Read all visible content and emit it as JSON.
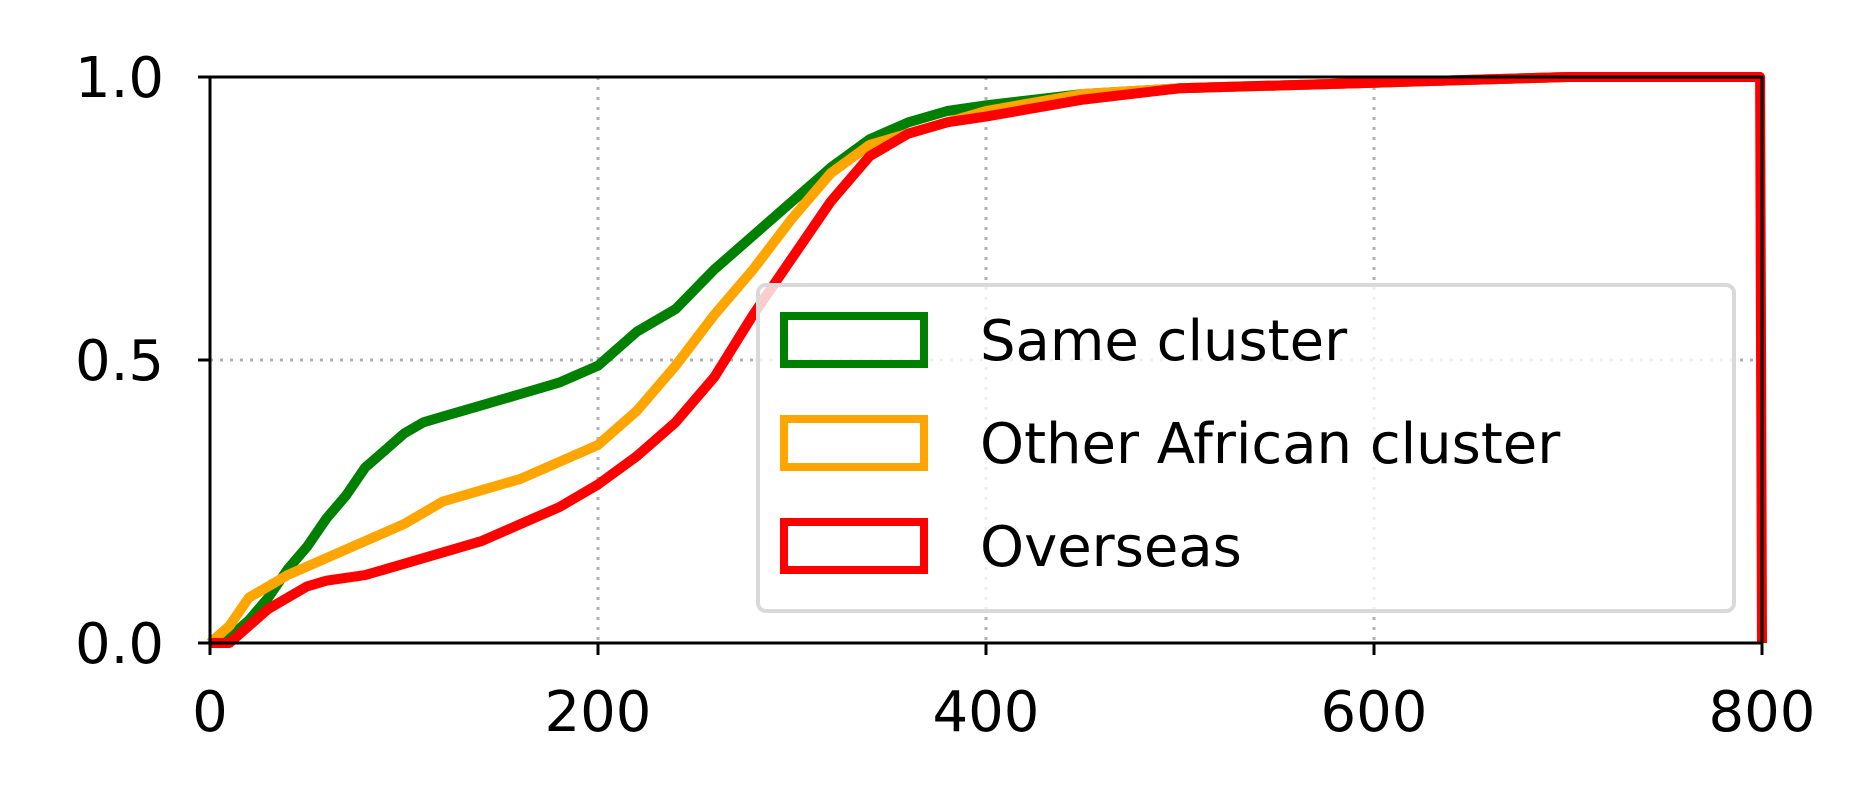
{
  "chart_data": {
    "type": "line",
    "title": "",
    "xlabel": "",
    "ylabel": "",
    "xlim": [
      0,
      800
    ],
    "ylim": [
      0.0,
      1.0
    ],
    "x_ticks": [
      0,
      200,
      400,
      600,
      800
    ],
    "x_tick_labels": [
      "0",
      "200",
      "400",
      "600",
      "800"
    ],
    "y_ticks": [
      0.0,
      0.5,
      1.0
    ],
    "y_tick_labels": [
      "0.0",
      "0.5",
      "1.0"
    ],
    "grid": true,
    "legend_position": "center-right",
    "series": [
      {
        "name": "Same cluster",
        "color": "#008000",
        "x": [
          0,
          10,
          20,
          30,
          40,
          50,
          60,
          70,
          80,
          90,
          100,
          110,
          120,
          140,
          160,
          180,
          200,
          210,
          220,
          240,
          260,
          280,
          300,
          320,
          340,
          360,
          380,
          400,
          450,
          500,
          600,
          700,
          800
        ],
        "y": [
          0.0,
          0.01,
          0.04,
          0.08,
          0.13,
          0.17,
          0.22,
          0.26,
          0.31,
          0.34,
          0.37,
          0.39,
          0.4,
          0.42,
          0.44,
          0.46,
          0.49,
          0.52,
          0.55,
          0.59,
          0.66,
          0.72,
          0.78,
          0.84,
          0.89,
          0.92,
          0.94,
          0.95,
          0.97,
          0.98,
          0.99,
          1.0,
          1.0
        ]
      },
      {
        "name": "Other African cluster",
        "color": "#ffa500",
        "x": [
          0,
          10,
          20,
          30,
          40,
          60,
          80,
          100,
          120,
          140,
          160,
          180,
          200,
          220,
          240,
          260,
          280,
          300,
          320,
          340,
          360,
          380,
          400,
          450,
          500,
          600,
          700,
          800
        ],
        "y": [
          0.0,
          0.03,
          0.08,
          0.1,
          0.12,
          0.15,
          0.18,
          0.21,
          0.25,
          0.27,
          0.29,
          0.32,
          0.35,
          0.41,
          0.49,
          0.58,
          0.66,
          0.75,
          0.83,
          0.88,
          0.9,
          0.92,
          0.94,
          0.97,
          0.98,
          0.99,
          1.0,
          1.0
        ]
      },
      {
        "name": "Overseas",
        "color": "#ff0000",
        "x": [
          0,
          10,
          20,
          30,
          40,
          50,
          60,
          80,
          100,
          120,
          140,
          160,
          180,
          200,
          220,
          240,
          260,
          280,
          300,
          320,
          340,
          360,
          380,
          400,
          450,
          500,
          600,
          700,
          799,
          800
        ],
        "y": [
          0.0,
          0.0,
          0.03,
          0.06,
          0.08,
          0.1,
          0.11,
          0.12,
          0.14,
          0.16,
          0.18,
          0.21,
          0.24,
          0.28,
          0.33,
          0.39,
          0.47,
          0.58,
          0.68,
          0.78,
          0.86,
          0.9,
          0.92,
          0.93,
          0.96,
          0.98,
          0.99,
          1.0,
          1.0,
          0.0
        ]
      }
    ]
  }
}
